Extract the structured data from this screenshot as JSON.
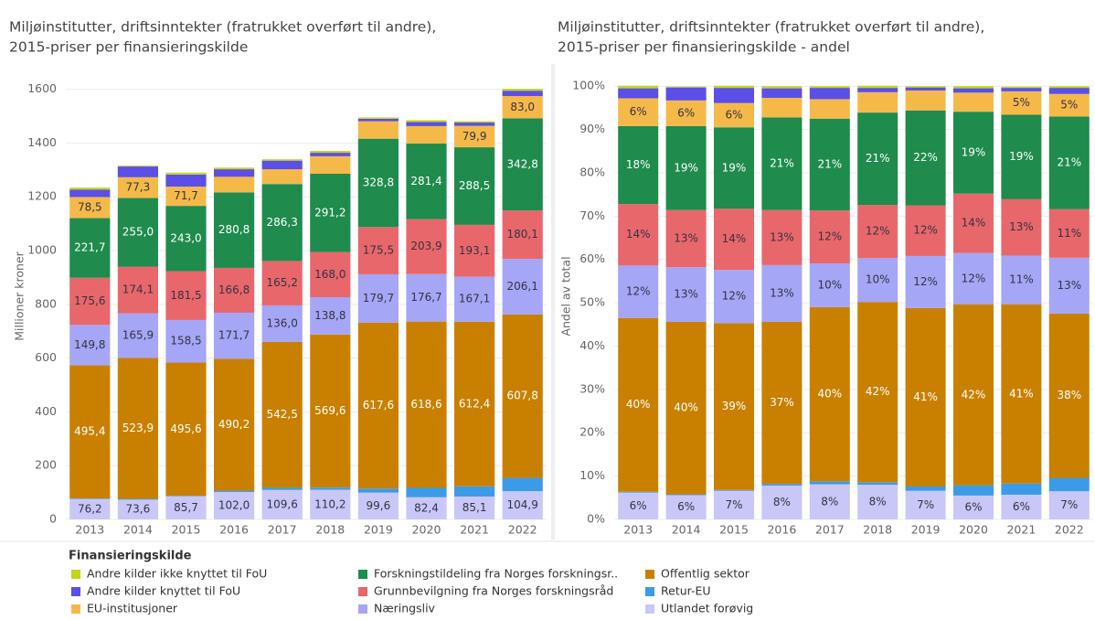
{
  "chart_data": [
    {
      "type": "stacked_bar",
      "title": [
        "Miljøinstitutter, driftsinntekter (fratrukket overført til andre),",
        "2015-priser per finansieringskilde"
      ],
      "y_label": "Millioner kroner",
      "categories": [
        "2013",
        "2014",
        "2015",
        "2016",
        "2017",
        "2018",
        "2019",
        "2020",
        "2021",
        "2022"
      ],
      "ylim": [
        0,
        1660
      ],
      "yticks": [
        0,
        200,
        400,
        600,
        800,
        1000,
        1200,
        1400,
        1600
      ],
      "grid": true,
      "series": [
        {
          "name": "Andre kilder ikke knyttet til FoU",
          "color": "#c3d51c",
          "values": [
            7,
            3,
            7,
            6,
            5,
            7,
            5,
            7,
            5,
            7
          ]
        },
        {
          "name": "Andre kilder knyttet til FoU",
          "color": "#5b4fe6",
          "values": [
            28,
            40,
            45,
            28,
            32,
            13,
            9,
            15,
            12,
            20
          ]
        },
        {
          "name": "EU-institusjoner",
          "color": "#f5b94a",
          "values": [
            78.5,
            77.3,
            71.7,
            58,
            55,
            65,
            65,
            65,
            79.9,
            83.0
          ],
          "value_labels": [
            "78,5",
            "77,3",
            "71,7",
            null,
            null,
            null,
            null,
            null,
            "79,9",
            "83,0"
          ]
        },
        {
          "name": "Forskningstildeling fra Norges forskningsr..",
          "color": "#1f8b4d",
          "values": [
            221.7,
            255.0,
            243.0,
            280.8,
            286.3,
            291.2,
            328.8,
            281.4,
            288.5,
            342.8
          ],
          "value_labels": [
            "221,7",
            "255,0",
            "243,0",
            "280,8",
            "286,3",
            "291,2",
            "328,8",
            "281,4",
            "288,5",
            "342,8"
          ]
        },
        {
          "name": "Grunnbevilgning fra Norges forskningsråd",
          "color": "#e8676b",
          "values": [
            175.6,
            174.1,
            181.5,
            166.8,
            165.2,
            168.0,
            175.5,
            203.9,
            193.1,
            180.1
          ],
          "value_labels": [
            "175,6",
            "174,1",
            "181,5",
            "166,8",
            "165,2",
            "168,0",
            "175,5",
            "203,9",
            "193,1",
            "180,1"
          ]
        },
        {
          "name": "Næringsliv",
          "color": "#a5a6f6",
          "values": [
            149.8,
            165.9,
            158.5,
            171.7,
            136.0,
            138.8,
            179.7,
            176.7,
            167.1,
            206.1
          ],
          "value_labels": [
            "149,8",
            "165,9",
            "158,5",
            "171,7",
            "136,0",
            "138,8",
            "179,7",
            "176,7",
            "167,1",
            "206,1"
          ]
        },
        {
          "name": "Offentlig sektor",
          "color": "#c98000",
          "values": [
            495.4,
            523.9,
            495.6,
            490.2,
            542.5,
            569.6,
            617.6,
            618.6,
            612.4,
            607.8
          ],
          "value_labels": [
            "495,4",
            "523,9",
            "495,6",
            "490,2",
            "542,5",
            "569,6",
            "617,6",
            "618,6",
            "612,4",
            "607,8"
          ]
        },
        {
          "name": "Retur-EU",
          "color": "#3c9be6",
          "values": [
            2,
            3,
            2,
            5,
            8,
            8,
            15,
            35,
            38,
            50
          ]
        },
        {
          "name": "Utlandet forøvig",
          "color": "#c9c7f7",
          "values": [
            76.2,
            73.6,
            85.7,
            102.0,
            109.6,
            110.2,
            99.6,
            82.4,
            85.1,
            104.9
          ],
          "value_labels": [
            "76,2",
            "73,6",
            "85,7",
            "102,0",
            "109,6",
            "110,2",
            "99,6",
            "82,4",
            "85,1",
            "104,9"
          ]
        }
      ]
    },
    {
      "type": "stacked_bar",
      "title": [
        "Miljøinstitutter, driftsinntekter (fratrukket overført til andre),",
        "2015-priser per finansieringskilde - andel"
      ],
      "y_label": "Andel av total",
      "categories": [
        "2013",
        "2014",
        "2015",
        "2016",
        "2017",
        "2018",
        "2019",
        "2020",
        "2021",
        "2022"
      ],
      "ylim": [
        0,
        103
      ],
      "yticks": [
        {
          "value": 0,
          "label": "0%"
        },
        {
          "value": 10,
          "label": "10%"
        },
        {
          "value": 20,
          "label": "20%"
        },
        {
          "value": 30,
          "label": "30%"
        },
        {
          "value": 40,
          "label": "40%"
        },
        {
          "value": 50,
          "label": "50%"
        },
        {
          "value": 60,
          "label": "60%"
        },
        {
          "value": 70,
          "label": "70%"
        },
        {
          "value": 80,
          "label": "80%"
        },
        {
          "value": 90,
          "label": "90%"
        },
        {
          "value": 100,
          "label": "100%"
        }
      ],
      "grid": true,
      "series": [
        {
          "name": "Andre kilder ikke knyttet til FoU",
          "color": "#c3d51c",
          "values": [
            0.6,
            0.2,
            0.5,
            0.5,
            0.4,
            0.5,
            0.3,
            0.5,
            0.3,
            0.4
          ]
        },
        {
          "name": "Andre kilder knyttet til FoU",
          "color": "#5b4fe6",
          "values": [
            2.3,
            3.0,
            3.5,
            2.2,
            2.6,
            1.0,
            0.7,
            1.0,
            0.8,
            1.4
          ]
        },
        {
          "name": "EU-institusjoner",
          "color": "#f5b94a",
          "values": [
            6.4,
            5.9,
            5.6,
            4.5,
            4.5,
            4.7,
            4.6,
            4.4,
            5.4,
            5.2
          ],
          "value_labels": [
            "6%",
            "6%",
            "6%",
            null,
            null,
            null,
            null,
            null,
            "5%",
            "5%"
          ]
        },
        {
          "name": "Forskningstildeling fra Norges forskningsr..",
          "color": "#1f8b4d",
          "values": [
            18.0,
            19.4,
            18.8,
            21.4,
            21.2,
            21.3,
            21.9,
            18.9,
            19.5,
            21.4
          ],
          "value_labels": [
            "18%",
            "19%",
            "19%",
            "21%",
            "21%",
            "21%",
            "22%",
            "19%",
            "19%",
            "21%"
          ]
        },
        {
          "name": "Grunnbevilgning fra Norges forskningsråd",
          "color": "#e8676b",
          "values": [
            14.2,
            13.2,
            14.1,
            12.7,
            12.2,
            12.3,
            11.7,
            13.7,
            13.0,
            11.2
          ],
          "value_labels": [
            "14%",
            "13%",
            "14%",
            "13%",
            "12%",
            "12%",
            "12%",
            "14%",
            "13%",
            "11%"
          ]
        },
        {
          "name": "Næringsliv",
          "color": "#a5a6f6",
          "values": [
            12.1,
            12.6,
            12.3,
            13.1,
            10.1,
            10.1,
            12.0,
            11.9,
            11.3,
            12.9
          ],
          "value_labels": [
            "12%",
            "13%",
            "12%",
            "13%",
            "10%",
            "10%",
            "12%",
            "12%",
            "11%",
            "13%"
          ]
        },
        {
          "name": "Offentlig sektor",
          "color": "#c98000",
          "values": [
            40.1,
            39.8,
            38.5,
            37.4,
            40.2,
            41.6,
            41.2,
            41.7,
            41.3,
            37.9
          ],
          "value_labels": [
            "40%",
            "40%",
            "39%",
            "37%",
            "40%",
            "42%",
            "41%",
            "42%",
            "41%",
            "38%"
          ]
        },
        {
          "name": "Retur-EU",
          "color": "#3c9be6",
          "values": [
            0.2,
            0.2,
            0.2,
            0.4,
            0.7,
            0.6,
            1.0,
            2.4,
            2.6,
            3.1
          ]
        },
        {
          "name": "Utlandet forøvig",
          "color": "#c9c7f7",
          "values": [
            6.2,
            5.6,
            6.6,
            7.8,
            8.1,
            8.0,
            6.6,
            5.5,
            5.7,
            6.5
          ],
          "value_labels": [
            "6%",
            "6%",
            "7%",
            "8%",
            "8%",
            "8%",
            "7%",
            "6%",
            "6%",
            "7%"
          ]
        }
      ]
    }
  ],
  "legend": {
    "title": "Finansieringskilde"
  }
}
